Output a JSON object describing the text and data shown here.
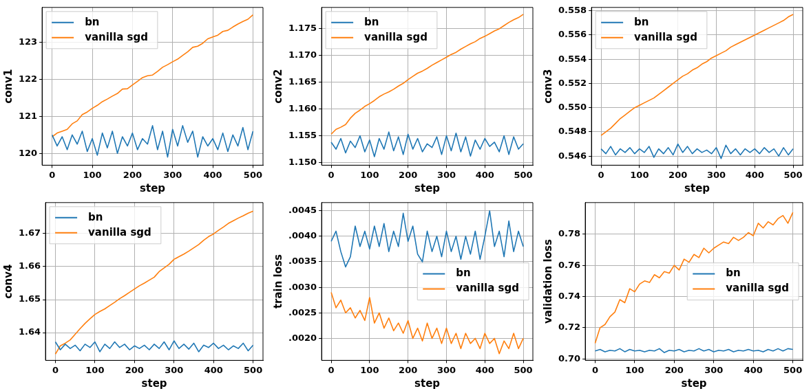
{
  "chart_data": [
    {
      "type": "line",
      "xlabel": "step",
      "ylabel": "conv1",
      "xlim": [
        -25,
        525
      ],
      "xticks": [
        0,
        100,
        200,
        300,
        400,
        500
      ],
      "ylim": [
        119.68,
        123.95
      ],
      "yticks": [
        120,
        121,
        122,
        123
      ],
      "grid": true,
      "legend": "top left",
      "x": [
        0,
        12.5,
        25,
        37.5,
        50,
        62.5,
        75,
        87.5,
        100,
        112.5,
        125,
        137.5,
        150,
        162.5,
        175,
        187.5,
        200,
        212.5,
        225,
        237.5,
        250,
        262.5,
        275,
        287.5,
        300,
        312.5,
        325,
        337.5,
        350,
        362.5,
        375,
        387.5,
        400,
        412.5,
        425,
        437.5,
        450,
        462.5,
        475,
        487.5,
        500
      ],
      "series": [
        {
          "name": "bn",
          "color": "#1f77b4",
          "values": [
            120.5,
            120.2,
            120.45,
            120.1,
            120.5,
            120.25,
            120.6,
            120.05,
            120.4,
            119.95,
            120.55,
            120.15,
            120.6,
            120.0,
            120.45,
            120.2,
            120.55,
            120.1,
            120.4,
            120.25,
            120.75,
            120.1,
            120.6,
            119.9,
            120.65,
            120.2,
            120.75,
            120.3,
            120.6,
            119.9,
            120.45,
            120.2,
            120.4,
            120.1,
            120.55,
            120.05,
            120.5,
            120.2,
            120.7,
            120.1,
            120.6
          ]
        },
        {
          "name": "vanilla sgd",
          "color": "#ff7f0e",
          "values": [
            120.45,
            120.55,
            120.6,
            120.65,
            120.8,
            120.88,
            121.05,
            121.12,
            121.22,
            121.3,
            121.4,
            121.47,
            121.55,
            121.62,
            121.74,
            121.75,
            121.85,
            121.95,
            122.05,
            122.1,
            122.12,
            122.22,
            122.33,
            122.4,
            122.48,
            122.55,
            122.65,
            122.75,
            122.87,
            122.9,
            122.98,
            123.1,
            123.15,
            123.2,
            123.3,
            123.33,
            123.42,
            123.5,
            123.57,
            123.63,
            123.75
          ]
        }
      ]
    },
    {
      "type": "line",
      "xlabel": "step",
      "ylabel": "conv2",
      "xlim": [
        -25,
        525
      ],
      "xticks": [
        0,
        100,
        200,
        300,
        400,
        500
      ],
      "ylim": [
        1.1495,
        1.179
      ],
      "yticks": [
        {
          "value": 1.15,
          "label": "1.150"
        },
        1.155,
        {
          "value": 1.16,
          "label": "1.160"
        },
        1.165,
        {
          "value": 1.17,
          "label": "1.170"
        },
        1.175
      ],
      "grid": true,
      "legend": "top left",
      "x": [
        0,
        12.5,
        25,
        37.5,
        50,
        62.5,
        75,
        87.5,
        100,
        112.5,
        125,
        137.5,
        150,
        162.5,
        175,
        187.5,
        200,
        212.5,
        225,
        237.5,
        250,
        262.5,
        275,
        287.5,
        300,
        312.5,
        325,
        337.5,
        350,
        362.5,
        375,
        387.5,
        400,
        412.5,
        425,
        437.5,
        450,
        462.5,
        475,
        487.5,
        500
      ],
      "series": [
        {
          "name": "bn",
          "color": "#1f77b4",
          "values": [
            1.1538,
            1.1525,
            1.1545,
            1.1518,
            1.154,
            1.1528,
            1.155,
            1.152,
            1.1542,
            1.1511,
            1.1545,
            1.1525,
            1.1557,
            1.1522,
            1.1548,
            1.1515,
            1.1553,
            1.1525,
            1.1545,
            1.152,
            1.1535,
            1.1528,
            1.1548,
            1.1515,
            1.155,
            1.1522,
            1.1555,
            1.152,
            1.1548,
            1.1512,
            1.1542,
            1.1525,
            1.1545,
            1.153,
            1.1538,
            1.152,
            1.155,
            1.1515,
            1.1548,
            1.1525,
            1.1535
          ]
        },
        {
          "name": "vanilla sgd",
          "color": "#ff7f0e",
          "values": [
            1.1553,
            1.1562,
            1.1566,
            1.1571,
            1.1583,
            1.1592,
            1.1598,
            1.1605,
            1.161,
            1.1616,
            1.1623,
            1.1628,
            1.1632,
            1.1637,
            1.1643,
            1.1648,
            1.1655,
            1.1661,
            1.1667,
            1.1671,
            1.1676,
            1.1682,
            1.1687,
            1.1692,
            1.1697,
            1.1702,
            1.1706,
            1.1712,
            1.1717,
            1.1722,
            1.1726,
            1.1732,
            1.1736,
            1.1741,
            1.1746,
            1.175,
            1.1756,
            1.1762,
            1.1767,
            1.1771,
            1.1777
          ]
        }
      ]
    },
    {
      "type": "line",
      "xlabel": "step",
      "ylabel": "conv3",
      "xlim": [
        -25,
        525
      ],
      "xticks": [
        0,
        100,
        200,
        300,
        400,
        500
      ],
      "ylim": [
        0.54525,
        0.55828
      ],
      "yticks": [
        0.546,
        0.548,
        {
          "value": 0.55,
          "label": "0.550"
        },
        0.552,
        0.554,
        0.556,
        0.558
      ],
      "grid": true,
      "legend": "top left",
      "x": [
        0,
        12.5,
        25,
        37.5,
        50,
        62.5,
        75,
        87.5,
        100,
        112.5,
        125,
        137.5,
        150,
        162.5,
        175,
        187.5,
        200,
        212.5,
        225,
        237.5,
        250,
        262.5,
        275,
        287.5,
        300,
        312.5,
        325,
        337.5,
        350,
        362.5,
        375,
        387.5,
        400,
        412.5,
        425,
        437.5,
        450,
        462.5,
        475,
        487.5,
        500
      ],
      "series": [
        {
          "name": "bn",
          "color": "#1f77b4",
          "values": [
            0.5466,
            0.5462,
            0.5468,
            0.5461,
            0.5466,
            0.5463,
            0.5467,
            0.5462,
            0.5466,
            0.5463,
            0.5468,
            0.5459,
            0.5466,
            0.5462,
            0.5467,
            0.5461,
            0.547,
            0.5463,
            0.5468,
            0.5462,
            0.5466,
            0.5463,
            0.5465,
            0.5462,
            0.5467,
            0.5458,
            0.5469,
            0.5462,
            0.5466,
            0.5461,
            0.5466,
            0.5463,
            0.5466,
            0.5462,
            0.5467,
            0.5463,
            0.5466,
            0.546,
            0.5467,
            0.5461,
            0.5466
          ]
        },
        {
          "name": "vanilla sgd",
          "color": "#ff7f0e",
          "values": [
            0.5477,
            0.548,
            0.5483,
            0.5487,
            0.5491,
            0.5494,
            0.5497,
            0.55,
            0.5502,
            0.5504,
            0.5506,
            0.5508,
            0.5511,
            0.5514,
            0.5517,
            0.552,
            0.5523,
            0.5526,
            0.5528,
            0.5531,
            0.5533,
            0.5536,
            0.5538,
            0.5541,
            0.5543,
            0.5545,
            0.5547,
            0.555,
            0.5552,
            0.5554,
            0.5556,
            0.5558,
            0.556,
            0.5562,
            0.5564,
            0.5566,
            0.5568,
            0.557,
            0.5572,
            0.5575,
            0.5577
          ]
        }
      ]
    },
    {
      "type": "line",
      "xlabel": "step",
      "ylabel": "conv4",
      "xlim": [
        -25,
        525
      ],
      "xticks": [
        0,
        100,
        200,
        300,
        400,
        500
      ],
      "ylim": [
        1.6316,
        1.6794
      ],
      "yticks": [
        1.64,
        1.65,
        1.66,
        1.67
      ],
      "grid": true,
      "legend": "top left",
      "x": [
        0,
        12.5,
        25,
        37.5,
        50,
        62.5,
        75,
        87.5,
        100,
        112.5,
        125,
        137.5,
        150,
        162.5,
        175,
        187.5,
        200,
        212.5,
        225,
        237.5,
        250,
        262.5,
        275,
        287.5,
        300,
        312.5,
        325,
        337.5,
        350,
        362.5,
        375,
        387.5,
        400,
        412.5,
        425,
        437.5,
        450,
        462.5,
        475,
        487.5,
        500
      ],
      "series": [
        {
          "name": "bn",
          "color": "#1f77b4",
          "values": [
            1.6372,
            1.6348,
            1.6365,
            1.6352,
            1.6362,
            1.6345,
            1.6365,
            1.6355,
            1.6372,
            1.6342,
            1.6365,
            1.6352,
            1.6372,
            1.6355,
            1.6365,
            1.6348,
            1.636,
            1.6352,
            1.6362,
            1.6348,
            1.6365,
            1.6352,
            1.6372,
            1.6348,
            1.6375,
            1.6352,
            1.6365,
            1.635,
            1.6368,
            1.6342,
            1.6362,
            1.6355,
            1.6368,
            1.6352,
            1.6362,
            1.6348,
            1.636,
            1.6352,
            1.6368,
            1.6345,
            1.6362
          ]
        },
        {
          "name": "vanilla sgd",
          "color": "#ff7f0e",
          "values": [
            1.6335,
            1.636,
            1.6368,
            1.6378,
            1.6395,
            1.6412,
            1.6428,
            1.6442,
            1.6455,
            1.6464,
            1.6472,
            1.6482,
            1.6492,
            1.6503,
            1.6512,
            1.6522,
            1.6532,
            1.6542,
            1.655,
            1.6559,
            1.6568,
            1.6585,
            1.6596,
            1.6607,
            1.6622,
            1.663,
            1.6638,
            1.6647,
            1.6657,
            1.6667,
            1.668,
            1.6691,
            1.6699,
            1.671,
            1.672,
            1.6731,
            1.6739,
            1.6747,
            1.6754,
            1.6762,
            1.6768
          ]
        }
      ]
    },
    {
      "type": "line",
      "xlabel": "step",
      "ylabel": "train loss",
      "xlim": [
        -25,
        525
      ],
      "xticks": [
        0,
        100,
        200,
        300,
        400,
        500
      ],
      "ylim": [
        0.00157,
        0.00466
      ],
      "yticks": [
        {
          "value": 0.002,
          "label": ".0020"
        },
        {
          "value": 0.0025,
          "label": ".0025"
        },
        {
          "value": 0.003,
          "label": ".0030"
        },
        {
          "value": 0.0035,
          "label": ".0035"
        },
        {
          "value": 0.004,
          "label": ".0040"
        },
        {
          "value": 0.0045,
          "label": ".0045"
        }
      ],
      "grid": true,
      "legend": "right",
      "x": [
        0,
        12.5,
        25,
        37.5,
        50,
        62.5,
        75,
        87.5,
        100,
        112.5,
        125,
        137.5,
        150,
        162.5,
        175,
        187.5,
        200,
        212.5,
        225,
        237.5,
        250,
        262.5,
        275,
        287.5,
        300,
        312.5,
        325,
        337.5,
        350,
        362.5,
        375,
        387.5,
        400,
        412.5,
        425,
        437.5,
        450,
        462.5,
        475,
        487.5,
        500
      ],
      "series": [
        {
          "name": "bn",
          "color": "#1f77b4",
          "values": [
            0.0039,
            0.0041,
            0.0037,
            0.0034,
            0.0036,
            0.0042,
            0.0038,
            0.0041,
            0.00375,
            0.0042,
            0.0038,
            0.00425,
            0.0037,
            0.0041,
            0.0038,
            0.00445,
            0.0039,
            0.0042,
            0.00365,
            0.0035,
            0.0041,
            0.0037,
            0.004,
            0.0036,
            0.0041,
            0.0037,
            0.004,
            0.00355,
            0.004,
            0.00365,
            0.0041,
            0.00355,
            0.004,
            0.0045,
            0.0038,
            0.0041,
            0.0036,
            0.0043,
            0.0037,
            0.0041,
            0.0038
          ]
        },
        {
          "name": "vanilla sgd",
          "color": "#ff7f0e",
          "values": [
            0.0029,
            0.0026,
            0.00275,
            0.0025,
            0.0026,
            0.0024,
            0.00255,
            0.00235,
            0.0028,
            0.0023,
            0.0025,
            0.0022,
            0.0024,
            0.00215,
            0.0023,
            0.0021,
            0.00235,
            0.002,
            0.0022,
            0.00195,
            0.0023,
            0.002,
            0.0022,
            0.0019,
            0.0022,
            0.0019,
            0.0021,
            0.0018,
            0.0021,
            0.0019,
            0.002,
            0.0018,
            0.0021,
            0.0019,
            0.002,
            0.0017,
            0.00195,
            0.0018,
            0.0021,
            0.0018,
            0.002
          ]
        }
      ]
    },
    {
      "type": "line",
      "xlabel": "step",
      "ylabel": "validation loss",
      "xlim": [
        -25,
        525
      ],
      "xticks": [
        0,
        100,
        200,
        300,
        400,
        500
      ],
      "ylim": [
        0.699,
        0.8003
      ],
      "yticks": [
        {
          "value": 0.7,
          "label": "0.70"
        },
        0.72,
        0.74,
        0.76,
        0.78
      ],
      "grid": true,
      "legend": "right",
      "x": [
        0,
        12.5,
        25,
        37.5,
        50,
        62.5,
        75,
        87.5,
        100,
        112.5,
        125,
        137.5,
        150,
        162.5,
        175,
        187.5,
        200,
        212.5,
        225,
        237.5,
        250,
        262.5,
        275,
        287.5,
        300,
        312.5,
        325,
        337.5,
        350,
        362.5,
        375,
        387.5,
        400,
        412.5,
        425,
        437.5,
        450,
        462.5,
        475,
        487.5,
        500
      ],
      "series": [
        {
          "name": "bn",
          "color": "#1f77b4",
          "values": [
            0.705,
            0.706,
            0.7045,
            0.7055,
            0.705,
            0.7065,
            0.7045,
            0.706,
            0.705,
            0.7055,
            0.7045,
            0.7055,
            0.705,
            0.7065,
            0.704,
            0.7055,
            0.705,
            0.706,
            0.7045,
            0.7055,
            0.705,
            0.7065,
            0.705,
            0.706,
            0.7045,
            0.7055,
            0.705,
            0.706,
            0.7045,
            0.7055,
            0.705,
            0.706,
            0.705,
            0.7055,
            0.7045,
            0.706,
            0.705,
            0.7065,
            0.705,
            0.7065,
            0.706
          ]
        },
        {
          "name": "vanilla sgd",
          "color": "#ff7f0e",
          "values": [
            0.71,
            0.72,
            0.722,
            0.727,
            0.73,
            0.738,
            0.736,
            0.745,
            0.743,
            0.748,
            0.75,
            0.749,
            0.754,
            0.752,
            0.756,
            0.755,
            0.76,
            0.757,
            0.764,
            0.762,
            0.767,
            0.765,
            0.771,
            0.768,
            0.771,
            0.773,
            0.775,
            0.774,
            0.778,
            0.776,
            0.778,
            0.781,
            0.779,
            0.787,
            0.784,
            0.788,
            0.786,
            0.79,
            0.792,
            0.787,
            0.794
          ]
        }
      ]
    }
  ]
}
